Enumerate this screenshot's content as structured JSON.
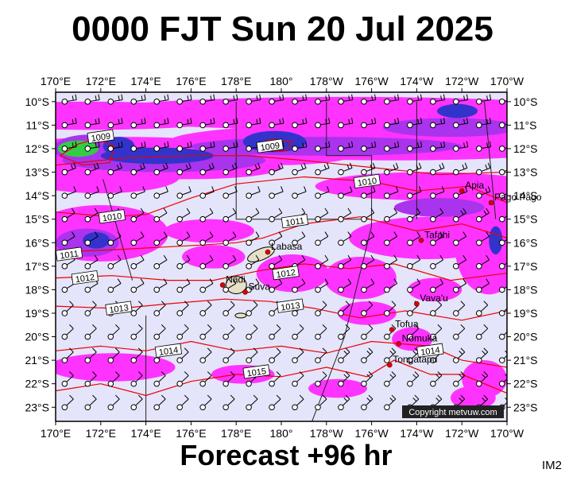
{
  "title": "0000 FJT Sun 20 Jul 2025",
  "footer": "Forecast +96 hr",
  "corner_label": "IM2",
  "copyright": "Copyright metvuw.com",
  "colors": {
    "background": "#e4e4fa",
    "isobar": "#ee0000",
    "precip_light": "#ff33ff",
    "precip_mid": "#aa33ee",
    "precip_heavy": "#3333cc",
    "precip_extreme": "#33cc44",
    "place_dot": "#dd0000"
  },
  "longitude_labels": [
    "170°E",
    "172°E",
    "174°E",
    "176°E",
    "178°E",
    "180°",
    "178°W",
    "176°W",
    "174°W",
    "172°W",
    "170°W"
  ],
  "latitude_labels": [
    "10°S",
    "11°S",
    "12°S",
    "13°S",
    "14°S",
    "15°S",
    "16°S",
    "17°S",
    "18°S",
    "19°S",
    "20°S",
    "21°S",
    "22°S",
    "23°S"
  ],
  "isobars": [
    {
      "label": "1009",
      "lon": 172.0,
      "lat": -11.5
    },
    {
      "label": "1009",
      "lon": 179.5,
      "lat": -11.9
    },
    {
      "label": "1010",
      "lon": 183.8,
      "lat": -13.4
    },
    {
      "label": "1010",
      "lon": 172.5,
      "lat": -14.9
    },
    {
      "label": "1011",
      "lon": 170.6,
      "lat": -16.5
    },
    {
      "label": "1011",
      "lon": 180.6,
      "lat": -15.1
    },
    {
      "label": "1012",
      "lon": 171.3,
      "lat": -17.5
    },
    {
      "label": "1012",
      "lon": 180.2,
      "lat": -17.3
    },
    {
      "label": "1013",
      "lon": 172.8,
      "lat": -18.8
    },
    {
      "label": "1013",
      "lon": 180.4,
      "lat": -18.7
    },
    {
      "label": "1014",
      "lon": 175.0,
      "lat": -20.6
    },
    {
      "label": "1014",
      "lon": 186.6,
      "lat": -20.6
    },
    {
      "label": "1015",
      "lon": 178.9,
      "lat": -21.5
    }
  ],
  "places": [
    {
      "name": "Apia",
      "lon": 188.0,
      "lat": -13.8
    },
    {
      "name": "Pago Pago",
      "lon": 189.3,
      "lat": -14.3
    },
    {
      "name": "Tafahi",
      "lon": 186.2,
      "lat": -15.9
    },
    {
      "name": "Labasa",
      "lon": 179.4,
      "lat": -16.4
    },
    {
      "name": "Nadi",
      "lon": 177.4,
      "lat": -17.8
    },
    {
      "name": "Suva",
      "lon": 178.4,
      "lat": -18.1
    },
    {
      "name": "Vava'u",
      "lon": 186.0,
      "lat": -18.6
    },
    {
      "name": "Tofua",
      "lon": 184.9,
      "lat": -19.7
    },
    {
      "name": "Nomuka",
      "lon": 185.2,
      "lat": -20.3
    },
    {
      "name": "Tongatapu",
      "lon": 184.8,
      "lat": -21.2
    }
  ]
}
